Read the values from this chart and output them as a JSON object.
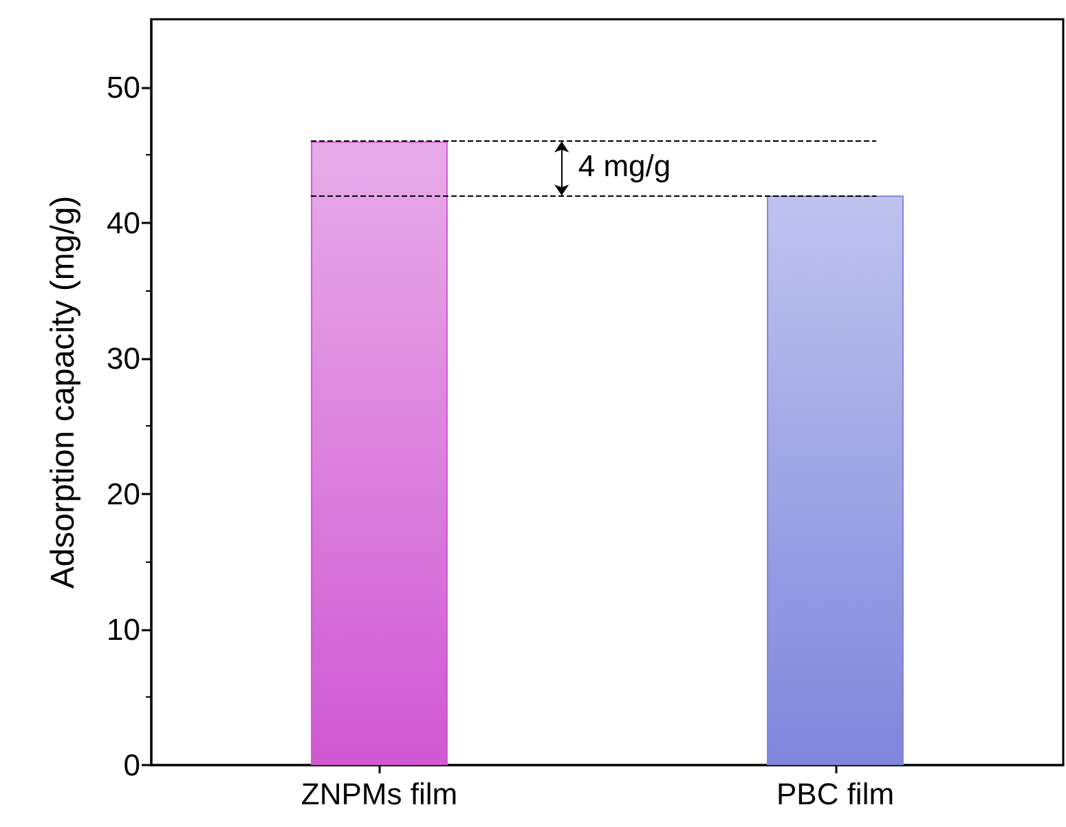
{
  "chart_data": {
    "type": "bar",
    "ylabel": "Adsorption capacity (mg/g)",
    "categories": [
      "ZNPMs film",
      "PBC film"
    ],
    "values": [
      46,
      42
    ],
    "colors": [
      "#d058d2",
      "#7f86dc"
    ],
    "ylim": [
      0,
      55
    ],
    "yticks": [
      0,
      10,
      20,
      30,
      40,
      50
    ],
    "grid": false,
    "ref_lines": [
      {
        "axis": "y",
        "value": 46,
        "line_style": "dashed"
      },
      {
        "axis": "y",
        "value": 42,
        "line_style": "dashed"
      }
    ],
    "annotations": [
      "4 mg/g"
    ]
  }
}
